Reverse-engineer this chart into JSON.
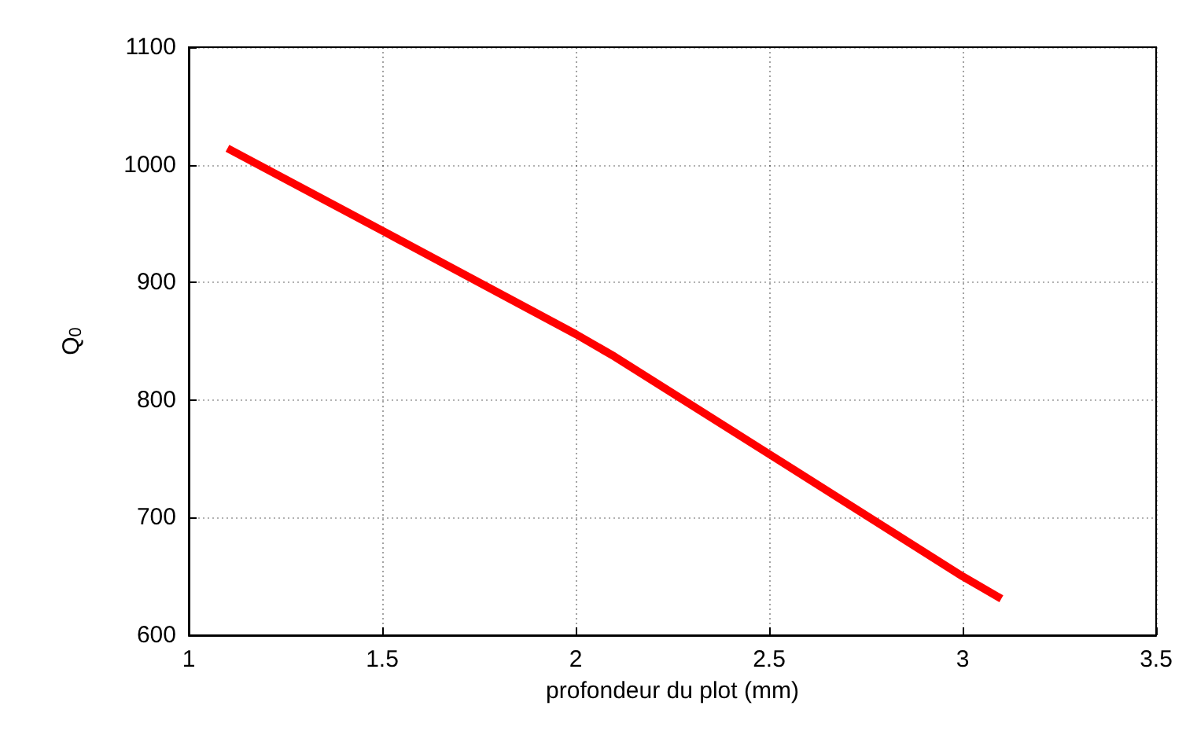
{
  "chart_data": {
    "type": "line",
    "xlabel": "profondeur du plot (mm)",
    "ylabel": "Q$_{0}$",
    "x": [
      1.1,
      1.5,
      2,
      2.1,
      2.5,
      3,
      3.1
    ],
    "series": [
      {
        "color": "#ff0000",
        "values": [
          1014,
          944,
          856,
          837,
          754,
          650,
          631
        ]
      }
    ],
    "xlim": [
      1,
      3.5
    ],
    "xticks": [
      1,
      1.5,
      2,
      2.5,
      3,
      3.5
    ],
    "ylim": [
      600,
      1100
    ],
    "yticks": [
      600,
      700,
      800,
      900,
      1000,
      1100
    ],
    "grid": true,
    "marker": "none",
    "line_style": "solid"
  }
}
